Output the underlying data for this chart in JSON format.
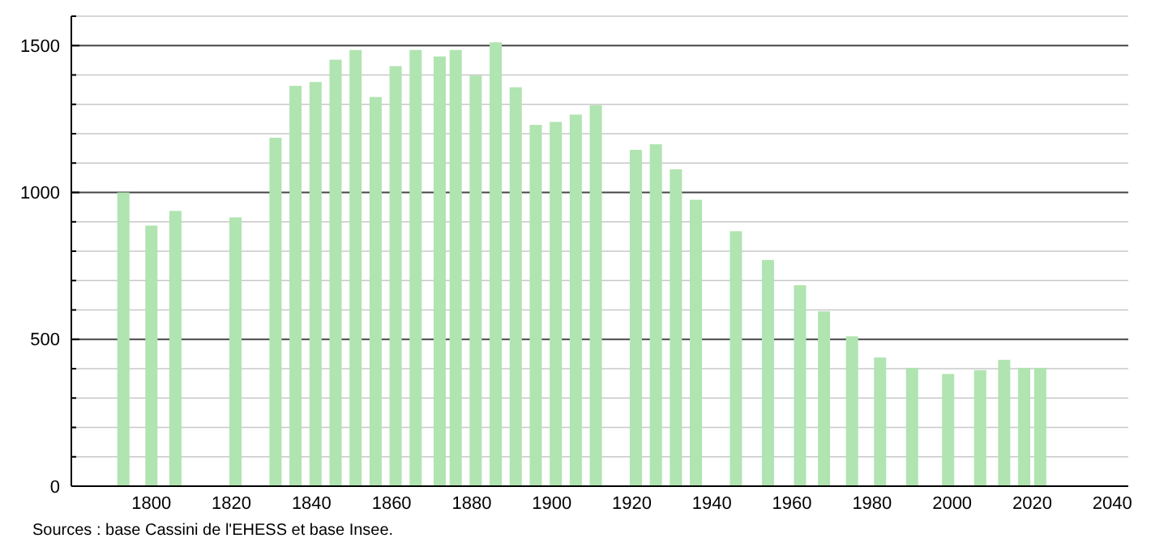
{
  "chart_data": {
    "type": "bar",
    "x": [
      1793,
      1800,
      1806,
      1821,
      1831,
      1836,
      1841,
      1846,
      1851,
      1856,
      1861,
      1866,
      1872,
      1876,
      1881,
      1886,
      1891,
      1896,
      1901,
      1906,
      1911,
      1921,
      1926,
      1931,
      1936,
      1946,
      1954,
      1962,
      1968,
      1975,
      1982,
      1990,
      1999,
      2007,
      2013,
      2018,
      2022
    ],
    "values": [
      1000,
      887,
      937,
      915,
      1186,
      1363,
      1376,
      1452,
      1485,
      1325,
      1430,
      1485,
      1463,
      1485,
      1398,
      1511,
      1358,
      1230,
      1240,
      1265,
      1297,
      1145,
      1164,
      1079,
      975,
      868,
      770,
      684,
      595,
      510,
      438,
      403,
      382,
      395,
      430,
      403,
      403
    ],
    "color": "#b0e4b0",
    "xlim": [
      1780,
      2044
    ],
    "xticks": [
      1800,
      1820,
      1840,
      1860,
      1880,
      1900,
      1920,
      1940,
      1960,
      1980,
      2000,
      2020,
      2040
    ],
    "ylim": [
      0,
      1600
    ],
    "yticks": [
      0,
      {
        "value": 100,
        "label": null
      },
      {
        "value": 200,
        "label": null
      },
      {
        "value": 300,
        "label": null
      },
      {
        "value": 400,
        "label": null
      },
      500,
      {
        "value": 600,
        "label": null
      },
      {
        "value": 700,
        "label": null
      },
      {
        "value": 800,
        "label": null
      },
      {
        "value": 900,
        "label": null
      },
      1000,
      {
        "value": 1100,
        "label": null
      },
      {
        "value": 1200,
        "label": null
      },
      {
        "value": 1300,
        "label": null
      },
      {
        "value": 1400,
        "label": null
      },
      1500,
      {
        "value": 1600,
        "label": null
      }
    ],
    "grid": "y",
    "annotations": [
      "Sources : base Cassini de l'EHESS et base Insee."
    ]
  }
}
